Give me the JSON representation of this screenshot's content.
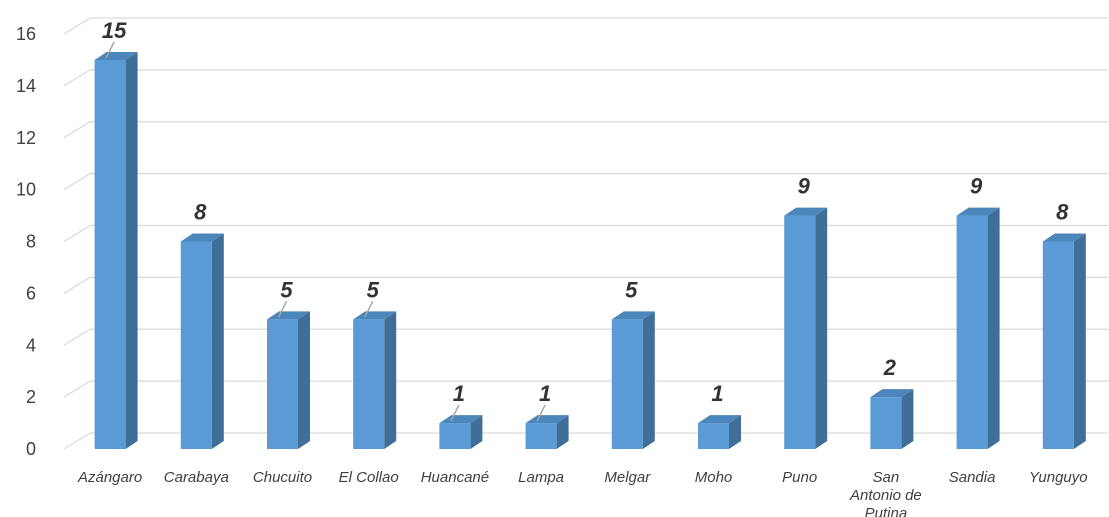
{
  "chart_data": {
    "type": "bar",
    "style": "3d-column",
    "categories": [
      "Azángaro",
      "Carabaya",
      "Chucuito",
      "El Collao",
      "Huancané",
      "Lampa",
      "Melgar",
      "Moho",
      "Puno",
      "San Antonio de Putina",
      "Sandia",
      "Yunguyo"
    ],
    "category_lines": [
      [
        "Azángaro"
      ],
      [
        "Carabaya"
      ],
      [
        "Chucuito"
      ],
      [
        "El Collao"
      ],
      [
        "Huancané"
      ],
      [
        "Lampa"
      ],
      [
        "Melgar"
      ],
      [
        "Moho"
      ],
      [
        "Puno"
      ],
      [
        "San",
        "Antonio de",
        "Putina"
      ],
      [
        "Sandia"
      ],
      [
        "Yunguyo"
      ]
    ],
    "values": [
      15,
      8,
      5,
      5,
      1,
      1,
      5,
      1,
      9,
      2,
      9,
      8
    ],
    "value_labels": [
      "15",
      "8",
      "5",
      "5",
      "1",
      "1",
      "5",
      "1",
      "9",
      "2",
      "9",
      "8"
    ],
    "yticks": [
      "0",
      "2",
      "4",
      "6",
      "8",
      "10",
      "12",
      "14",
      "16"
    ],
    "ylim": [
      0,
      16
    ],
    "grid": true,
    "legend": false,
    "title": "",
    "xlabel": "",
    "ylabel": "",
    "colors": {
      "bar_front": "#5b9bd5",
      "bar_side": "#3f6f98",
      "bar_top": "#4d86ba",
      "grid": "#d9d9d9",
      "axis_text": "#404040",
      "value_text": "#333333"
    }
  }
}
